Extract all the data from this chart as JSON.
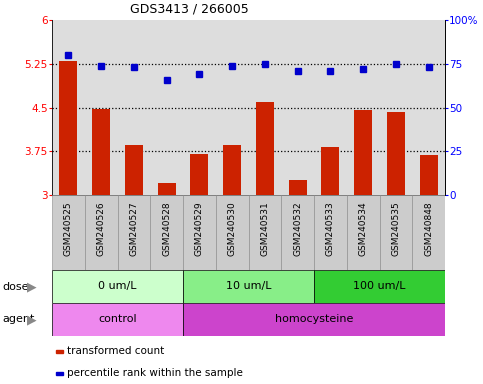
{
  "title": "GDS3413 / 266005",
  "samples": [
    "GSM240525",
    "GSM240526",
    "GSM240527",
    "GSM240528",
    "GSM240529",
    "GSM240530",
    "GSM240531",
    "GSM240532",
    "GSM240533",
    "GSM240534",
    "GSM240535",
    "GSM240848"
  ],
  "bar_values": [
    5.3,
    4.48,
    3.85,
    3.2,
    3.7,
    3.85,
    4.6,
    3.25,
    3.82,
    4.45,
    4.42,
    3.68
  ],
  "dot_values": [
    80,
    74,
    73,
    66,
    69,
    74,
    75,
    71,
    71,
    72,
    75,
    73
  ],
  "bar_color": "#cc2200",
  "dot_color": "#0000cc",
  "ylim_left": [
    3.0,
    6.0
  ],
  "ylim_right": [
    0,
    100
  ],
  "yticks_left": [
    3.0,
    3.75,
    4.5,
    5.25,
    6.0
  ],
  "ytick_labels_left": [
    "3",
    "3.75",
    "4.5",
    "5.25",
    "6"
  ],
  "yticks_right": [
    0,
    25,
    50,
    75,
    100
  ],
  "ytick_labels_right": [
    "0",
    "25",
    "50",
    "75",
    "100%"
  ],
  "hlines": [
    3.75,
    4.5,
    5.25
  ],
  "dose_groups": [
    {
      "label": "0 um/L",
      "start": 0,
      "end": 4,
      "color": "#ccffcc"
    },
    {
      "label": "10 um/L",
      "start": 4,
      "end": 8,
      "color": "#88ee88"
    },
    {
      "label": "100 um/L",
      "start": 8,
      "end": 12,
      "color": "#33cc33"
    }
  ],
  "agent_groups": [
    {
      "label": "control",
      "start": 0,
      "end": 4,
      "color": "#ee88ee"
    },
    {
      "label": "homocysteine",
      "start": 4,
      "end": 12,
      "color": "#cc44cc"
    }
  ],
  "legend_items": [
    {
      "label": "transformed count",
      "color": "#cc2200",
      "marker": "s"
    },
    {
      "label": "percentile rank within the sample",
      "color": "#0000cc",
      "marker": "s"
    }
  ],
  "dose_label": "dose",
  "agent_label": "agent",
  "bg_color": "#ffffff",
  "plot_bg": "#dddddd",
  "tick_label_bg": "#cccccc",
  "xticklabel_color": "black",
  "arrow_color": "#888888"
}
